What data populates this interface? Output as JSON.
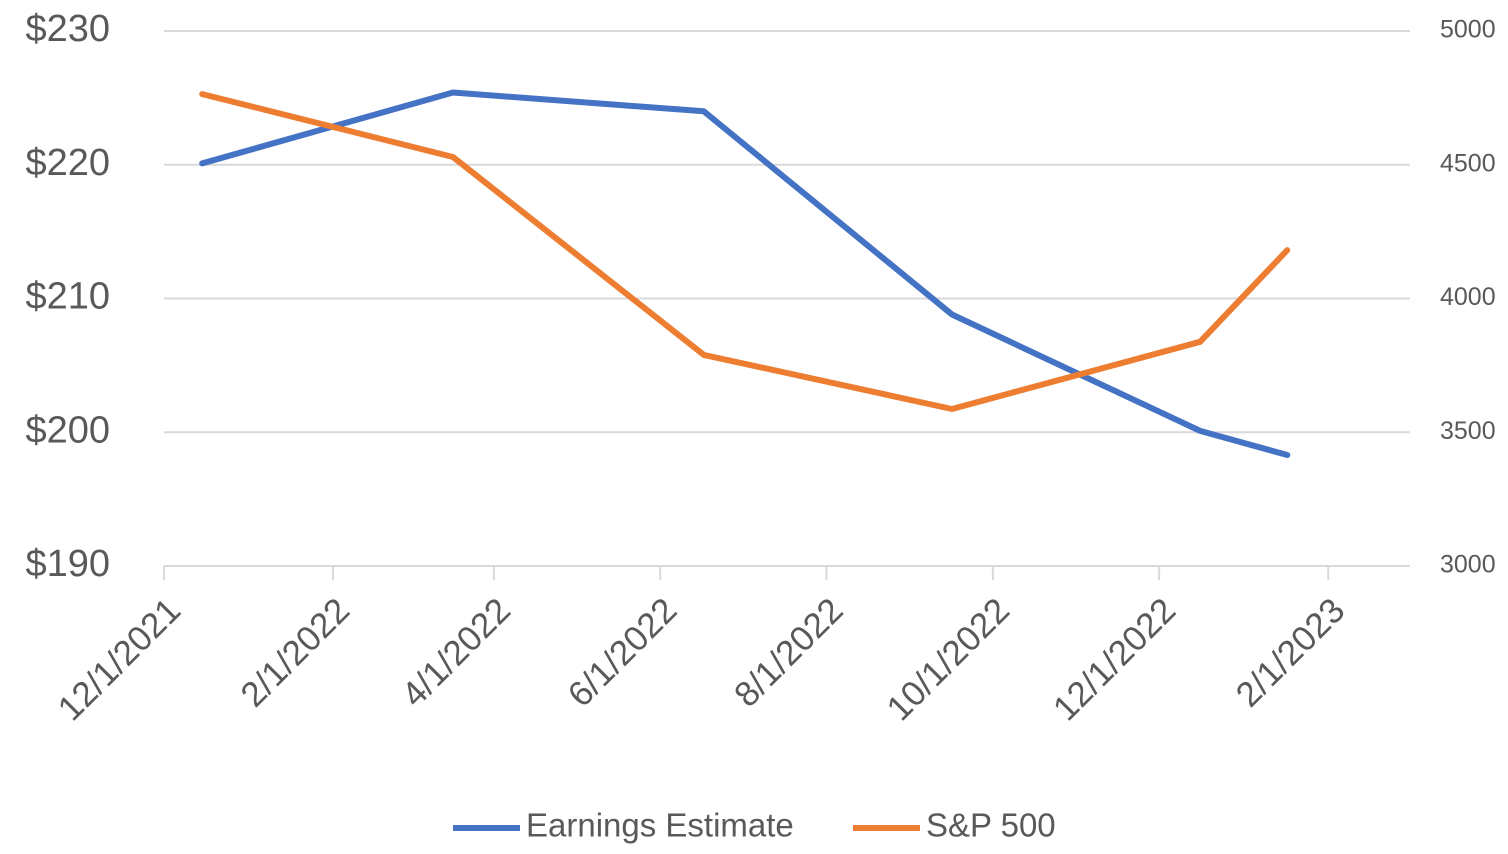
{
  "chart_data": {
    "type": "line",
    "x": [
      "12/15/2021",
      "3/17/2022",
      "6/17/2022",
      "9/16/2022",
      "12/16/2022",
      "1/17/2023"
    ],
    "series": [
      {
        "name": "Earnings Estimate",
        "color": "#4472c4",
        "values": [
          220.1,
          225.4,
          224.0,
          208.8,
          200.1,
          198.3
        ]
      },
      {
        "name": "S&P 500",
        "color": "#ed7d31",
        "axis": "y2",
        "values": [
          4764,
          4529,
          3789,
          3587,
          3838,
          4181
        ]
      }
    ],
    "xlim": [
      "12/1/2021",
      "3/3/2023"
    ],
    "xticks": [
      "12/1/2021",
      "2/1/2022",
      "4/1/2022",
      "6/1/2022",
      "8/1/2022",
      "10/1/2022",
      "12/1/2022",
      "2/1/2023"
    ],
    "ylim": [
      190,
      230
    ],
    "yticks": [
      {
        "value": 190,
        "label": "$190"
      },
      {
        "value": 200,
        "label": "$200"
      },
      {
        "value": 210,
        "label": "$210"
      },
      {
        "value": 220,
        "label": "$220"
      },
      {
        "value": 230,
        "label": "$230"
      }
    ],
    "y2lim": [
      3000,
      5000
    ],
    "y2ticks": [
      3000,
      3500,
      4000,
      4500,
      5000
    ],
    "grid": true,
    "legend": "bottom"
  }
}
